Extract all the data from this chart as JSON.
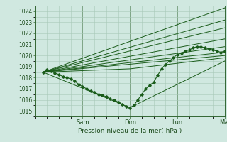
{
  "xlabel": "Pression niveau de la mer( hPa )",
  "bg_color": "#d0e8e0",
  "grid_color": "#a8c8b8",
  "line_color": "#1a5c1a",
  "ylim": [
    1014.5,
    1024.5
  ],
  "xlim": [
    0,
    96
  ],
  "x_ticks": [
    24,
    48,
    72,
    96
  ],
  "x_tick_labels": [
    "Sam",
    "Dim",
    "Lun",
    "Mar"
  ],
  "y_ticks": [
    1015,
    1016,
    1017,
    1018,
    1019,
    1020,
    1021,
    1022,
    1023,
    1024
  ],
  "ensemble_lines": [
    [
      [
        4,
        1018.5
      ],
      [
        96,
        1024.3
      ]
    ],
    [
      [
        4,
        1018.5
      ],
      [
        96,
        1023.2
      ]
    ],
    [
      [
        4,
        1018.5
      ],
      [
        96,
        1022.5
      ]
    ],
    [
      [
        4,
        1018.5
      ],
      [
        96,
        1021.5
      ]
    ],
    [
      [
        4,
        1018.5
      ],
      [
        96,
        1020.8
      ]
    ],
    [
      [
        4,
        1018.5
      ],
      [
        96,
        1020.3
      ]
    ],
    [
      [
        4,
        1018.5
      ],
      [
        96,
        1020.0
      ]
    ],
    [
      [
        4,
        1018.5
      ],
      [
        48,
        1018.8
      ],
      [
        96,
        1019.8
      ]
    ],
    [
      [
        4,
        1018.5
      ],
      [
        48,
        1015.3
      ],
      [
        96,
        1019.5
      ]
    ]
  ],
  "detail_x": [
    4,
    6,
    8,
    10,
    12,
    14,
    16,
    18,
    20,
    22,
    24,
    26,
    28,
    30,
    32,
    34,
    36,
    38,
    40,
    42,
    44,
    46,
    48,
    50,
    52,
    54,
    56,
    58,
    60,
    62,
    64,
    66,
    68,
    70,
    72,
    74,
    76,
    78,
    80,
    82,
    84,
    86,
    88,
    90,
    92,
    94,
    96
  ],
  "detail_y": [
    1018.5,
    1018.7,
    1018.6,
    1018.4,
    1018.3,
    1018.1,
    1018.0,
    1017.9,
    1017.7,
    1017.4,
    1017.2,
    1017.0,
    1016.8,
    1016.7,
    1016.5,
    1016.4,
    1016.3,
    1016.1,
    1016.0,
    1015.8,
    1015.6,
    1015.4,
    1015.3,
    1015.5,
    1016.0,
    1016.5,
    1017.0,
    1017.3,
    1017.6,
    1018.2,
    1018.8,
    1019.2,
    1019.5,
    1019.8,
    1020.1,
    1020.2,
    1020.4,
    1020.5,
    1020.7,
    1020.8,
    1020.8,
    1020.7,
    1020.6,
    1020.5,
    1020.4,
    1020.3,
    1020.4
  ]
}
